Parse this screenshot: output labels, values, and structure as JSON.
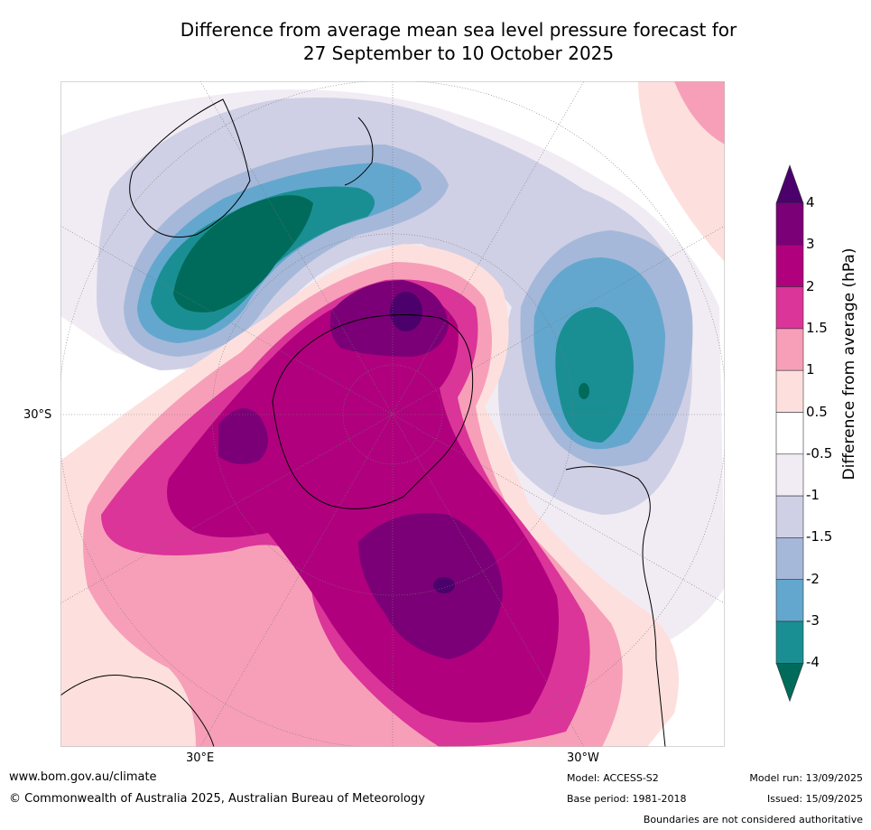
{
  "title": {
    "line1": "Difference from average mean sea level pressure forecast for",
    "line2": "27 September to 10 October 2025"
  },
  "map_labels": {
    "lat_30s": "30°S",
    "lon_30e": "30°E",
    "lon_30w": "30°W"
  },
  "colorbar": {
    "label": "Difference from average (hPa)",
    "ticks": [
      "4",
      "3",
      "2",
      "1.5",
      "1",
      "0.5",
      "-0.5",
      "-1",
      "-1.5",
      "-2",
      "-3",
      "-4"
    ],
    "colors": [
      "#4b006b",
      "#7b0077",
      "#b0007e",
      "#db3599",
      "#f79fb8",
      "#fde0de",
      "#ffffff",
      "#f1ecf4",
      "#cfd0e5",
      "#a5b8d9",
      "#63a7ce",
      "#1a8f93",
      "#006b5a"
    ]
  },
  "footer": {
    "website": "www.bom.gov.au/climate",
    "copyright": "© Commonwealth of Australia 2025, Australian Bureau of Meteorology",
    "model": "Model: ACCESS-S2",
    "base_period": "Base period: 1981-2018",
    "model_run": "Model run: 13/09/2025",
    "issued": "Issued: 15/09/2025",
    "disclaimer": "Boundaries are not considered authoritative"
  }
}
